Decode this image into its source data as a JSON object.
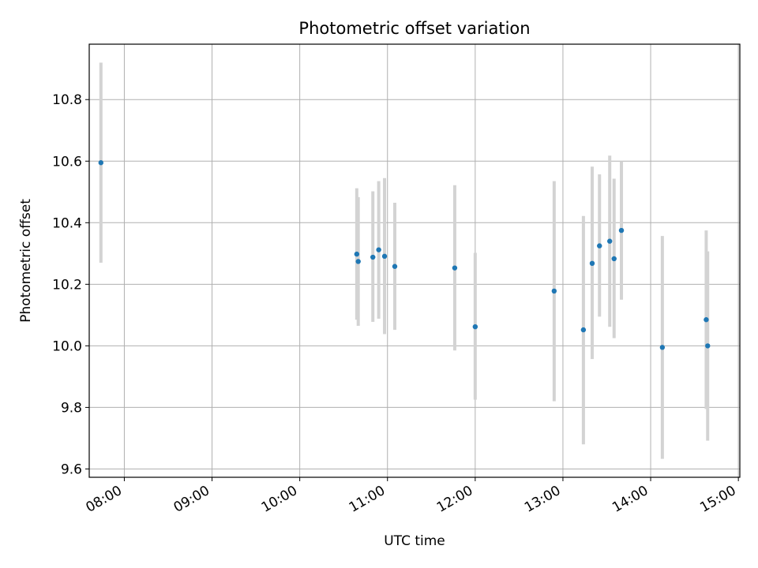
{
  "chart_data": {
    "type": "scatter",
    "title": "Photometric offset variation",
    "xlabel": "UTC time",
    "ylabel": "Photometric offset",
    "x_ticks": [
      "08:00",
      "09:00",
      "10:00",
      "11:00",
      "12:00",
      "13:00",
      "14:00",
      "15:00"
    ],
    "y_ticks": [
      "9.6",
      "9.8",
      "10.0",
      "10.2",
      "10.4",
      "10.6",
      "10.8"
    ],
    "xlim": [
      "07:36",
      "15:01"
    ],
    "ylim": [
      9.573,
      10.98
    ],
    "grid": true,
    "colors": {
      "point": "#1f77b4",
      "errorbar": "#d3d3d3",
      "grid": "#b0b0b0"
    },
    "points": [
      {
        "x": "07:44",
        "y": 10.595,
        "ylow": 10.27,
        "yhigh": 10.92
      },
      {
        "x": "10:39",
        "y": 10.298,
        "ylow": 10.085,
        "yhigh": 10.512
      },
      {
        "x": "10:40",
        "y": 10.274,
        "ylow": 10.065,
        "yhigh": 10.483
      },
      {
        "x": "10:50",
        "y": 10.288,
        "ylow": 10.078,
        "yhigh": 10.502
      },
      {
        "x": "10:54",
        "y": 10.312,
        "ylow": 10.088,
        "yhigh": 10.535
      },
      {
        "x": "10:58",
        "y": 10.291,
        "ylow": 10.038,
        "yhigh": 10.545
      },
      {
        "x": "11:05",
        "y": 10.258,
        "ylow": 10.052,
        "yhigh": 10.465
      },
      {
        "x": "11:46",
        "y": 10.253,
        "ylow": 9.985,
        "yhigh": 10.522
      },
      {
        "x": "12:00",
        "y": 10.062,
        "ylow": 9.825,
        "yhigh": 10.302
      },
      {
        "x": "12:54",
        "y": 10.178,
        "ylow": 9.82,
        "yhigh": 10.535
      },
      {
        "x": "13:14",
        "y": 10.052,
        "ylow": 9.68,
        "yhigh": 10.422
      },
      {
        "x": "13:20",
        "y": 10.268,
        "ylow": 9.957,
        "yhigh": 10.582
      },
      {
        "x": "13:25",
        "y": 10.325,
        "ylow": 10.095,
        "yhigh": 10.557
      },
      {
        "x": "13:32",
        "y": 10.34,
        "ylow": 10.062,
        "yhigh": 10.618
      },
      {
        "x": "13:35",
        "y": 10.283,
        "ylow": 10.025,
        "yhigh": 10.543
      },
      {
        "x": "13:40",
        "y": 10.375,
        "ylow": 10.15,
        "yhigh": 10.6
      },
      {
        "x": "14:08",
        "y": 9.995,
        "ylow": 9.633,
        "yhigh": 10.357
      },
      {
        "x": "14:38",
        "y": 10.085,
        "ylow": 9.795,
        "yhigh": 10.375
      },
      {
        "x": "14:39",
        "y": 10.0,
        "ylow": 9.692,
        "yhigh": 10.307
      }
    ]
  }
}
